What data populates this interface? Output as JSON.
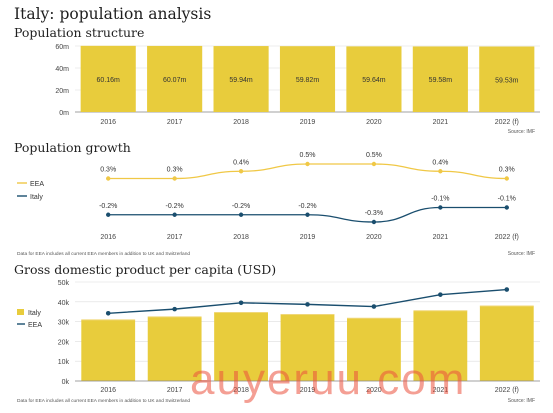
{
  "page": {
    "title": "Italy: population analysis"
  },
  "colors": {
    "bar": "#e8cc3c",
    "bar_line": "#f0d778",
    "line_italy": "#1a4e6e",
    "line_eea": "#f0c846",
    "grid": "#dddddd",
    "axis_text": "#444444"
  },
  "watermark": "auyeruu.com",
  "chart_data": [
    {
      "id": "population-structure",
      "type": "bar",
      "title": "Population structure",
      "categories": [
        "2016",
        "2017",
        "2018",
        "2019",
        "2020",
        "2021",
        "2022 (f)"
      ],
      "values": [
        60.16,
        60.07,
        59.94,
        59.82,
        59.64,
        59.58,
        59.53
      ],
      "data_labels": [
        "60.16m",
        "60.07m",
        "59.94m",
        "59.82m",
        "59.64m",
        "59.58m",
        "59.53m"
      ],
      "y_ticks": [
        0,
        20,
        40,
        60
      ],
      "y_tick_labels": [
        "0m",
        "20m",
        "40m",
        "60m"
      ],
      "ylim": [
        0,
        60
      ],
      "source": "Source: IMF",
      "grid": true
    },
    {
      "id": "population-growth",
      "type": "line",
      "title": "Population growth",
      "categories": [
        "2016",
        "2017",
        "2018",
        "2019",
        "2020",
        "2021",
        "2022 (f)"
      ],
      "series": [
        {
          "name": "EEA",
          "values": [
            0.3,
            0.3,
            0.4,
            0.5,
            0.5,
            0.4,
            0.3
          ],
          "labels": [
            "0.3%",
            "0.3%",
            "0.4%",
            "0.5%",
            "0.5%",
            "0.4%",
            "0.3%"
          ]
        },
        {
          "name": "Italy",
          "values": [
            -0.2,
            -0.2,
            -0.2,
            -0.2,
            -0.3,
            -0.1,
            -0.1
          ],
          "labels": [
            "-0.2%",
            "-0.2%",
            "-0.2%",
            "-0.2%",
            "-0.3%",
            "-0.1%",
            "-0.1%"
          ]
        }
      ],
      "note": "Data for EEA includes all current EEA members in addition to UK and Switzerland",
      "source": "Source: IMF"
    },
    {
      "id": "gdp-per-capita",
      "type": "bar",
      "title": "Gross domestic product per capita (USD)",
      "categories": [
        "2016",
        "2017",
        "2018",
        "2019",
        "2020",
        "2021",
        "2022 (f)"
      ],
      "series": [
        {
          "name": "Italy",
          "type": "bar",
          "values": [
            30900,
            32400,
            34600,
            33600,
            31700,
            35500,
            37900
          ]
        },
        {
          "name": "EEA",
          "type": "line",
          "values": [
            34200,
            36300,
            39500,
            38700,
            37600,
            43600,
            46200
          ]
        }
      ],
      "y_ticks": [
        0,
        10000,
        20000,
        30000,
        40000,
        50000
      ],
      "y_tick_labels": [
        "0k",
        "10k",
        "20k",
        "30k",
        "40k",
        "50k"
      ],
      "ylim": [
        0,
        50000
      ],
      "note": "Data for EEA includes all current EEA members in addition to UK and Switzerland",
      "source": "Source: IMF",
      "grid": true
    }
  ]
}
